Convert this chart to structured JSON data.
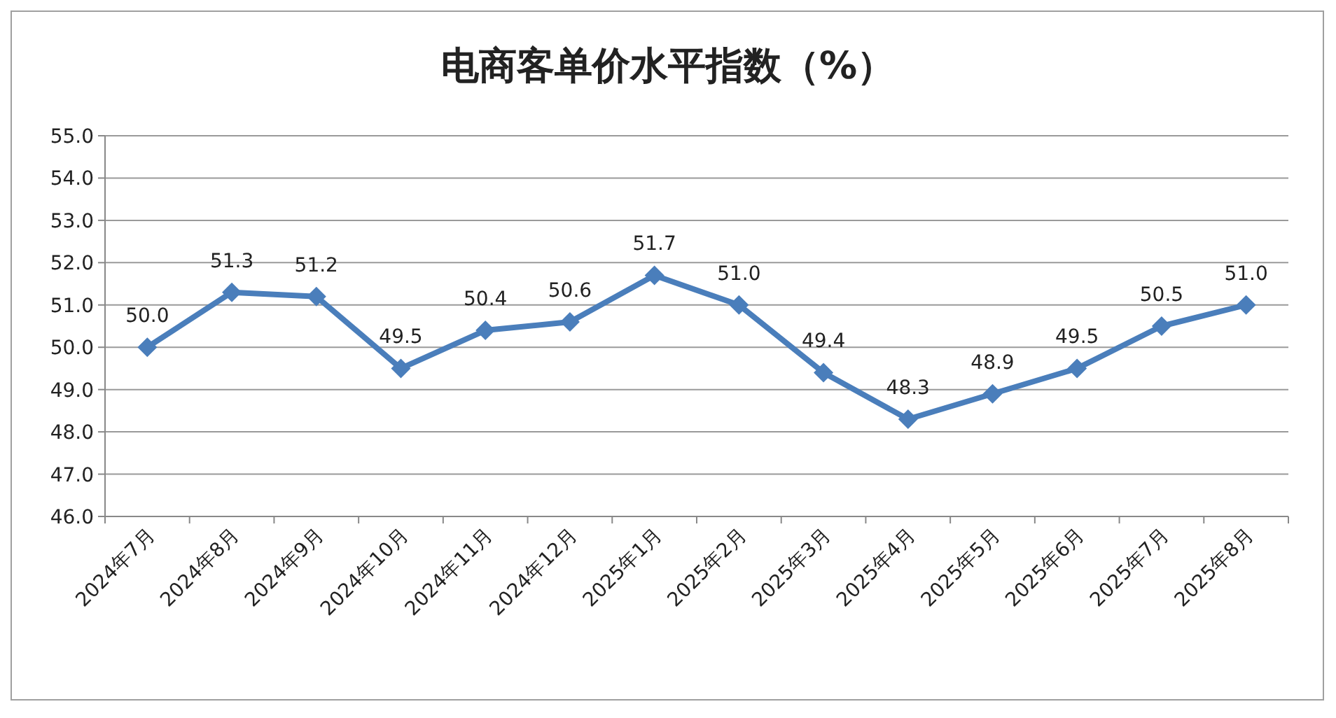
{
  "chart_data": {
    "type": "line",
    "title": "电商客单价水平指数（%）",
    "categories": [
      "2024年7月",
      "2024年8月",
      "2024年9月",
      "2024年10月",
      "2024年11月",
      "2024年12月",
      "2025年1月",
      "2025年2月",
      "2025年3月",
      "2025年4月",
      "2025年5月",
      "2025年6月",
      "2025年7月",
      "2025年8月"
    ],
    "values": [
      50.0,
      51.3,
      51.2,
      49.5,
      50.4,
      50.6,
      51.7,
      51.0,
      49.4,
      48.3,
      48.9,
      49.5,
      50.5,
      51.0
    ],
    "value_labels": [
      "50.0",
      "51.3",
      "51.2",
      "49.5",
      "50.4",
      "50.6",
      "51.7",
      "51.0",
      "49.4",
      "48.3",
      "48.9",
      "49.5",
      "50.5",
      "51.0"
    ],
    "color": "#4a7ebb",
    "marker": "diamond",
    "grid": "y",
    "ylim": [
      46,
      55
    ],
    "yticks": [
      {
        "value": 46,
        "label": "46.0"
      },
      {
        "value": 47,
        "label": "47.0"
      },
      {
        "value": 48,
        "label": "48.0"
      },
      {
        "value": 49,
        "label": "49.0"
      },
      {
        "value": 50,
        "label": "50.0"
      },
      {
        "value": 51,
        "label": "51.0"
      },
      {
        "value": 52,
        "label": "52.0"
      },
      {
        "value": 53,
        "label": "53.0"
      },
      {
        "value": 54,
        "label": "54.0"
      },
      {
        "value": 55,
        "label": "55.0"
      }
    ]
  }
}
